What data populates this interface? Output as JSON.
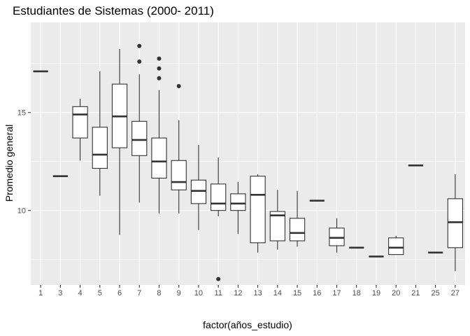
{
  "chart_data": {
    "type": "boxplot",
    "title": "Estudiantes de Sistemas (2000- 2011)",
    "xlabel": "factor(años_estudio)",
    "ylabel": "Promedio general",
    "ylim": [
      6.2,
      19.6
    ],
    "yticks": [
      10,
      15
    ],
    "grid": true,
    "colors": {
      "panel": "#ebebeb",
      "grid_major": "#ffffff",
      "box_fill": "#ffffff",
      "box_line": "#333333",
      "tick_text": "#4d4d4d"
    },
    "categories": [
      "1",
      "3",
      "4",
      "5",
      "6",
      "7",
      "8",
      "9",
      "10",
      "11",
      "12",
      "13",
      "14",
      "15",
      "16",
      "17",
      "18",
      "19",
      "20",
      "21",
      "25",
      "27"
    ],
    "boxes": [
      {
        "min": 17.1,
        "q1": 17.1,
        "median": 17.1,
        "q3": 17.1,
        "max": 17.1,
        "outliers": []
      },
      {
        "min": 11.75,
        "q1": 11.75,
        "median": 11.75,
        "q3": 11.75,
        "max": 11.75,
        "outliers": []
      },
      {
        "min": 12.55,
        "q1": 13.7,
        "median": 14.9,
        "q3": 15.3,
        "max": 15.7,
        "outliers": []
      },
      {
        "min": 10.75,
        "q1": 12.15,
        "median": 12.85,
        "q3": 14.25,
        "max": 17.1,
        "outliers": []
      },
      {
        "min": 8.75,
        "q1": 13.2,
        "median": 14.8,
        "q3": 16.45,
        "max": 18.25,
        "outliers": []
      },
      {
        "min": 10.4,
        "q1": 12.8,
        "median": 13.6,
        "q3": 14.55,
        "max": 16.95,
        "outliers": [
          18.4,
          17.6
        ]
      },
      {
        "min": 9.85,
        "q1": 11.65,
        "median": 12.5,
        "q3": 13.7,
        "max": 16.15,
        "outliers": [
          17.75,
          17.25,
          16.75
        ]
      },
      {
        "min": 9.85,
        "q1": 11.05,
        "median": 11.45,
        "q3": 12.55,
        "max": 14.6,
        "outliers": [
          16.35
        ]
      },
      {
        "min": 9.0,
        "q1": 10.35,
        "median": 11.0,
        "q3": 11.55,
        "max": 13.35,
        "outliers": []
      },
      {
        "min": 9.7,
        "q1": 10.0,
        "median": 10.35,
        "q3": 11.35,
        "max": 12.7,
        "outliers": [
          6.5
        ]
      },
      {
        "min": 8.8,
        "q1": 10.0,
        "median": 10.35,
        "q3": 10.85,
        "max": 11.45,
        "outliers": []
      },
      {
        "min": 7.85,
        "q1": 8.35,
        "median": 10.8,
        "q3": 11.75,
        "max": 11.85,
        "outliers": []
      },
      {
        "min": 8.0,
        "q1": 8.45,
        "median": 9.75,
        "q3": 9.95,
        "max": 11.05,
        "outliers": []
      },
      {
        "min": 8.15,
        "q1": 8.45,
        "median": 8.85,
        "q3": 9.6,
        "max": 11.0,
        "outliers": []
      },
      {
        "min": 10.5,
        "q1": 10.5,
        "median": 10.5,
        "q3": 10.5,
        "max": 10.5,
        "outliers": []
      },
      {
        "min": 7.85,
        "q1": 8.2,
        "median": 8.6,
        "q3": 9.1,
        "max": 9.6,
        "outliers": []
      },
      {
        "min": 8.1,
        "q1": 8.1,
        "median": 8.1,
        "q3": 8.1,
        "max": 8.1,
        "outliers": []
      },
      {
        "min": 7.65,
        "q1": 7.65,
        "median": 7.65,
        "q3": 7.65,
        "max": 7.65,
        "outliers": []
      },
      {
        "min": 7.75,
        "q1": 7.75,
        "median": 8.1,
        "q3": 8.6,
        "max": 8.7,
        "outliers": []
      },
      {
        "min": 12.3,
        "q1": 12.3,
        "median": 12.3,
        "q3": 12.3,
        "max": 12.3,
        "outliers": []
      },
      {
        "min": 7.85,
        "q1": 7.85,
        "median": 7.85,
        "q3": 7.85,
        "max": 7.85,
        "outliers": []
      },
      {
        "min": 6.9,
        "q1": 8.1,
        "median": 9.4,
        "q3": 10.6,
        "max": 11.85,
        "outliers": []
      }
    ]
  }
}
